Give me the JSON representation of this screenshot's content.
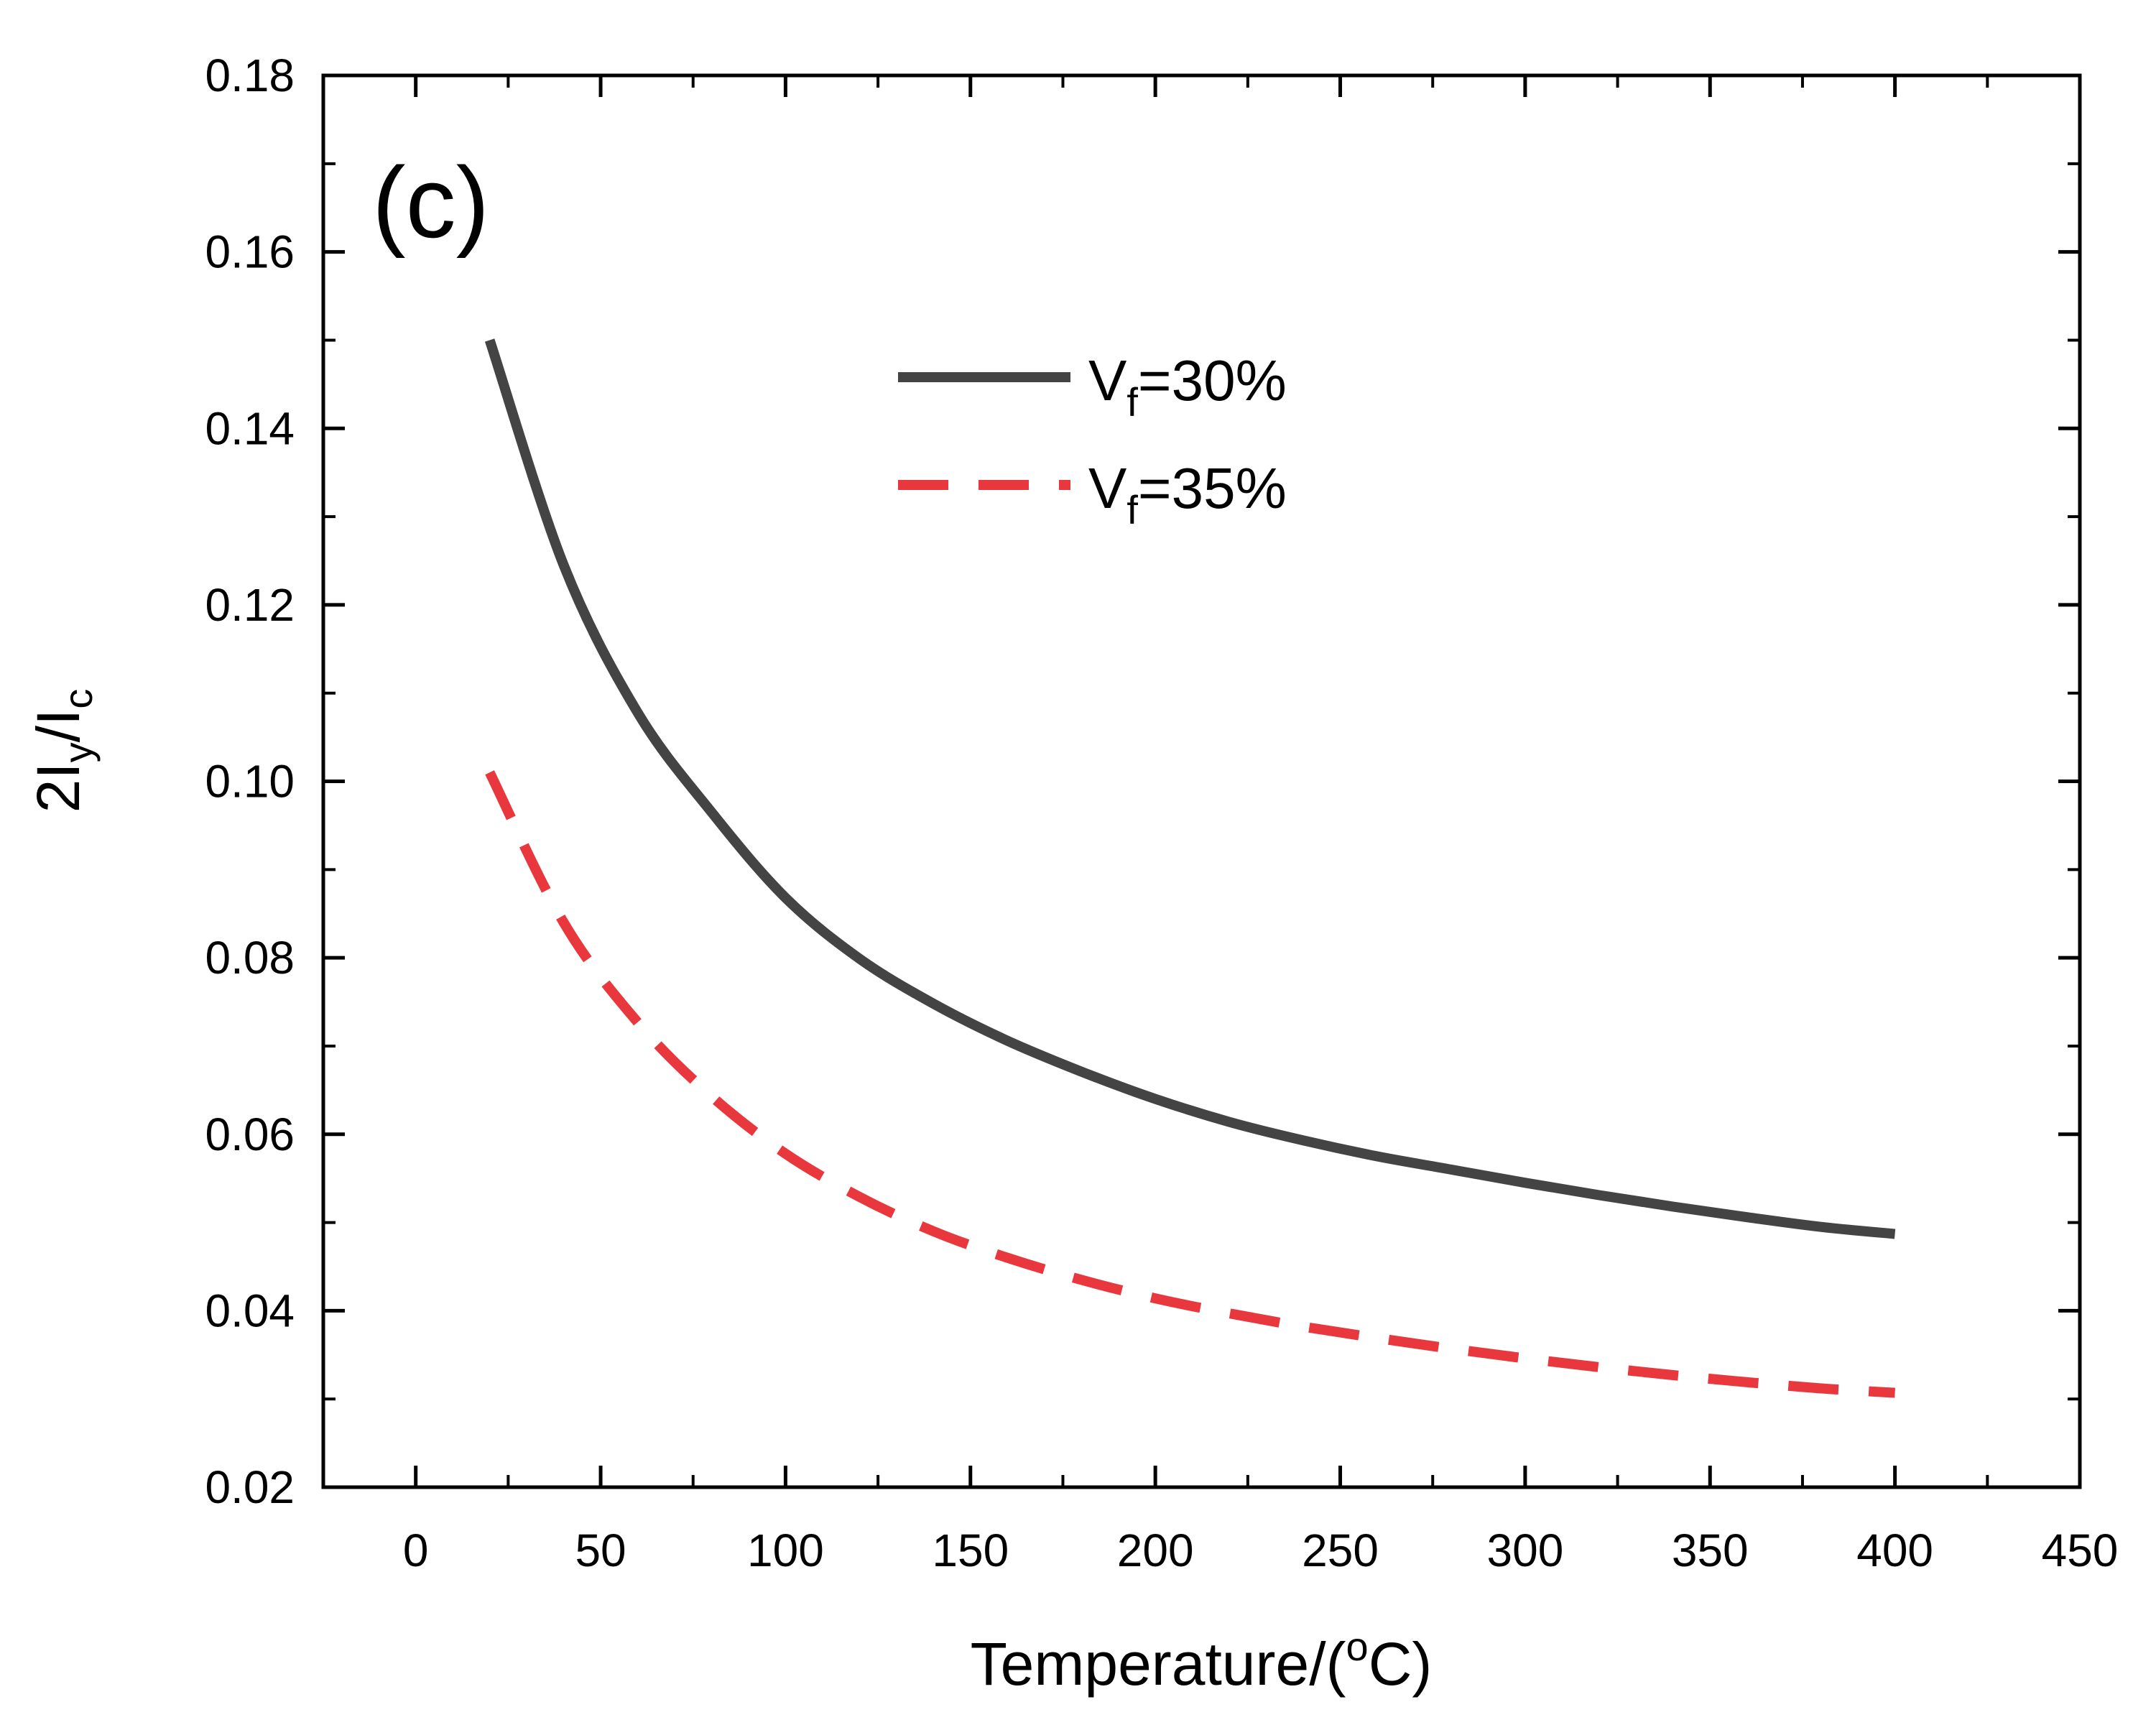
{
  "chart_data": {
    "type": "line",
    "panel_label": "(c)",
    "xlabel": "Temperature/(",
    "xlabel_sup": "o",
    "xlabel_unit": "C)",
    "ylabel_base": "2I",
    "ylabel_sub1": "y",
    "ylabel_mid": "/I",
    "ylabel_sub2": "c",
    "xlim": [
      -25,
      450
    ],
    "ylim": [
      0.02,
      0.18
    ],
    "xticks": [
      0,
      50,
      100,
      150,
      200,
      250,
      300,
      350,
      400,
      450
    ],
    "xtick_labels": [
      "0",
      "50",
      "100",
      "150",
      "200",
      "250",
      "300",
      "350",
      "400",
      "450"
    ],
    "yticks": [
      0.02,
      0.04,
      0.06,
      0.08,
      0.1,
      0.12,
      0.14,
      0.16,
      0.18
    ],
    "ytick_labels": [
      "0.02",
      "0.04",
      "0.06",
      "0.08",
      "0.10",
      "0.12",
      "0.14",
      "0.16",
      "0.18"
    ],
    "legend_position": "top-center",
    "series": [
      {
        "name": "Vf=30%",
        "label_base": "V",
        "label_sub": "f",
        "label_rest": "=30%",
        "color": "#444444",
        "style": "solid",
        "x": [
          20,
          40,
          60,
          80,
          100,
          120,
          140,
          160,
          180,
          200,
          220,
          240,
          260,
          280,
          300,
          320,
          340,
          360,
          380,
          400
        ],
        "y": [
          0.15,
          0.1245,
          0.1078,
          0.0965,
          0.0868,
          0.0799,
          0.0748,
          0.0706,
          0.0671,
          0.064,
          0.0614,
          0.0593,
          0.0575,
          0.056,
          0.0545,
          0.0531,
          0.0518,
          0.0506,
          0.0495,
          0.0487
        ]
      },
      {
        "name": "Vf=35%",
        "label_base": "V",
        "label_sub": "f",
        "label_rest": "=35%",
        "color": "#e8383d",
        "style": "dashed",
        "x": [
          20,
          40,
          60,
          80,
          100,
          120,
          140,
          160,
          180,
          200,
          220,
          240,
          260,
          280,
          300,
          320,
          340,
          360,
          380,
          400
        ],
        "y": [
          0.101,
          0.084,
          0.0727,
          0.0643,
          0.0578,
          0.0529,
          0.049,
          0.046,
          0.0435,
          0.0414,
          0.0397,
          0.0382,
          0.0369,
          0.0357,
          0.0346,
          0.0336,
          0.0327,
          0.0319,
          0.0312,
          0.0307
        ]
      }
    ]
  }
}
